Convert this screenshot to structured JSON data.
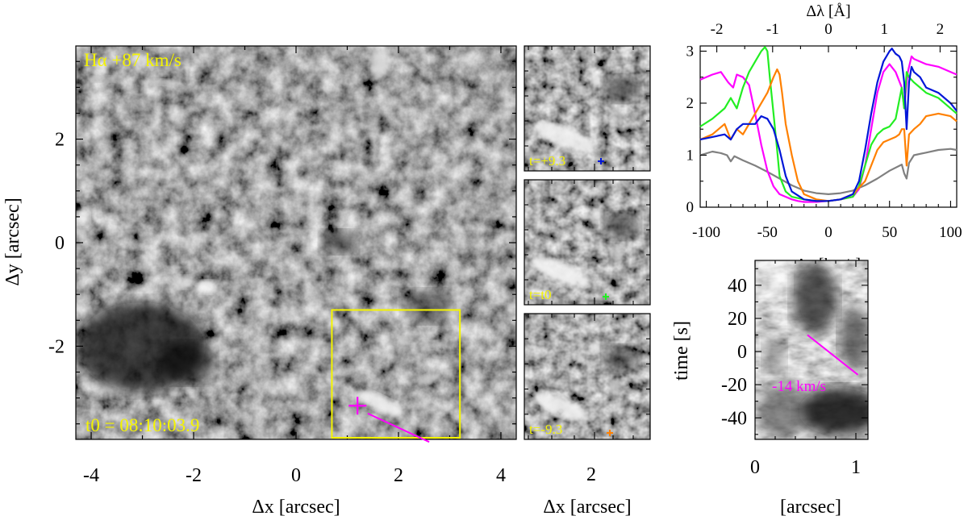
{
  "colors": {
    "yellow": "#f4f400",
    "magenta": "#ff00ff",
    "green": "#22ee22",
    "blue": "#0016d8",
    "orange": "#ff8000",
    "gray": "#808080"
  },
  "chart_data": [
    {
      "id": "main-image",
      "type": "heatmap",
      "label": "Hα +87 km/s",
      "time_label": "t0 = 08:10:03.9",
      "xlabel": "Δx [arcsec]",
      "ylabel": "Δy [arcsec]",
      "xlim": [
        -4.3,
        4.3
      ],
      "ylim": [
        -3.8,
        3.8
      ],
      "xticks": [
        "-4",
        "-2",
        "0",
        "2",
        "4"
      ],
      "yticks": [
        "-2",
        "0",
        "2"
      ],
      "roi_box": {
        "x": [
          0.7,
          3.2
        ],
        "y": [
          -3.8,
          -1.3
        ]
      },
      "marker": {
        "x": 1.2,
        "y": -3.15
      },
      "slit": {
        "x": [
          1.4,
          2.6
        ],
        "y": [
          -3.3,
          -3.85
        ]
      }
    },
    {
      "id": "cutouts",
      "type": "heatmap",
      "labels": [
        "t=+9.3",
        "t=t0",
        "t=-9.3"
      ],
      "marker_colors": [
        "#0016d8",
        "#22ee22",
        "#ff8000"
      ],
      "xlabel": "Δx [arcsec]",
      "xticks": [
        "2"
      ]
    },
    {
      "id": "profiles",
      "type": "line",
      "xlabel": "Δv [km/s]",
      "x2label": "Δλ [Å]",
      "xlim": [
        -105,
        105
      ],
      "ylim": [
        0,
        3.1
      ],
      "xticks": [
        "-100",
        "-50",
        "0",
        "50",
        "100"
      ],
      "x2ticks": [
        "-2",
        "-1",
        "0",
        "1",
        "2"
      ],
      "yticks": [
        "0",
        "1",
        "2",
        "3"
      ],
      "series": [
        {
          "color": "#808080",
          "x": [
            -105,
            -95,
            -88,
            -83,
            -80,
            -77,
            -70,
            -60,
            -50,
            -40,
            -30,
            -20,
            -10,
            0,
            10,
            20,
            30,
            40,
            50,
            60,
            62,
            64,
            66,
            70,
            80,
            90,
            100,
            105
          ],
          "y": [
            1.0,
            1.07,
            1.04,
            1.0,
            0.88,
            0.98,
            0.9,
            0.8,
            0.68,
            0.55,
            0.42,
            0.32,
            0.27,
            0.25,
            0.27,
            0.32,
            0.42,
            0.55,
            0.7,
            0.82,
            0.65,
            0.55,
            0.85,
            1.0,
            1.05,
            1.1,
            1.12,
            1.1
          ]
        },
        {
          "color": "#ff00ff",
          "x": [
            -105,
            -95,
            -88,
            -82,
            -78,
            -75,
            -70,
            -65,
            -60,
            -55,
            -50,
            -45,
            -40,
            -35,
            -30,
            -25,
            -20,
            -10,
            0,
            10,
            20,
            25,
            30,
            35,
            40,
            45,
            50,
            55,
            60,
            62,
            65,
            68,
            70,
            75,
            80,
            90,
            100,
            105
          ],
          "y": [
            2.45,
            2.55,
            2.6,
            2.4,
            2.3,
            2.55,
            2.5,
            2.35,
            1.8,
            1.2,
            0.7,
            0.4,
            0.25,
            0.2,
            0.15,
            0.12,
            0.1,
            0.1,
            0.12,
            0.15,
            0.2,
            0.35,
            0.8,
            1.5,
            2.2,
            2.6,
            2.75,
            2.6,
            2.3,
            1.9,
            2.6,
            2.9,
            2.85,
            2.8,
            2.75,
            2.7,
            2.6,
            2.55
          ]
        },
        {
          "color": "#22ee22",
          "x": [
            -105,
            -95,
            -85,
            -80,
            -75,
            -70,
            -65,
            -60,
            -55,
            -52,
            -50,
            -48,
            -45,
            -42,
            -40,
            -35,
            -30,
            -20,
            -10,
            0,
            10,
            20,
            25,
            30,
            35,
            40,
            45,
            50,
            55,
            60,
            62,
            64,
            66,
            70,
            75,
            80,
            90,
            100,
            105
          ],
          "y": [
            1.55,
            1.7,
            1.9,
            2.1,
            1.9,
            2.3,
            2.6,
            2.8,
            3.0,
            3.1,
            3.0,
            2.5,
            1.8,
            1.1,
            0.6,
            0.3,
            0.2,
            0.15,
            0.12,
            0.12,
            0.15,
            0.2,
            0.4,
            0.8,
            1.2,
            1.4,
            1.5,
            1.55,
            1.7,
            2.3,
            1.9,
            2.6,
            2.5,
            2.4,
            2.3,
            2.2,
            2.1,
            1.9,
            1.8
          ]
        },
        {
          "color": "#ff8000",
          "x": [
            -105,
            -95,
            -85,
            -80,
            -75,
            -70,
            -60,
            -50,
            -45,
            -42,
            -40,
            -38,
            -35,
            -30,
            -25,
            -20,
            -10,
            0,
            10,
            20,
            30,
            35,
            40,
            45,
            50,
            55,
            58,
            60,
            62,
            64,
            66,
            70,
            75,
            80,
            90,
            100,
            105
          ],
          "y": [
            1.3,
            1.4,
            1.6,
            1.3,
            1.5,
            1.4,
            1.8,
            2.2,
            2.5,
            2.65,
            2.55,
            2.2,
            1.6,
            1.0,
            0.5,
            0.25,
            0.15,
            0.12,
            0.15,
            0.25,
            0.5,
            0.8,
            1.1,
            1.25,
            1.3,
            1.35,
            1.4,
            1.5,
            1.5,
            0.8,
            1.4,
            1.5,
            1.6,
            1.75,
            1.8,
            1.75,
            1.65
          ]
        },
        {
          "color": "#0016d8",
          "x": [
            -105,
            -95,
            -85,
            -80,
            -75,
            -70,
            -60,
            -55,
            -50,
            -45,
            -40,
            -35,
            -30,
            -20,
            -10,
            0,
            10,
            20,
            25,
            30,
            35,
            40,
            45,
            50,
            52,
            55,
            58,
            60,
            62,
            64,
            66,
            68,
            70,
            75,
            80,
            90,
            100,
            105
          ],
          "y": [
            1.3,
            1.35,
            1.4,
            1.3,
            1.5,
            1.6,
            1.6,
            1.75,
            1.7,
            1.5,
            1.1,
            0.6,
            0.3,
            0.15,
            0.12,
            0.12,
            0.15,
            0.25,
            0.5,
            1.1,
            1.8,
            2.4,
            2.8,
            3.0,
            3.05,
            2.95,
            2.9,
            2.8,
            2.4,
            1.5,
            2.4,
            2.7,
            2.6,
            2.5,
            2.3,
            2.2,
            2.0,
            1.85
          ]
        }
      ]
    },
    {
      "id": "time-slice",
      "type": "heatmap",
      "xlabel": "[arcsec]",
      "ylabel": "time [s]",
      "xlim": [
        0,
        1.12
      ],
      "ylim": [
        -53,
        55
      ],
      "xticks": [
        "0",
        "1"
      ],
      "yticks": [
        "-40",
        "-20",
        "0",
        "20",
        "40"
      ],
      "velocity_label": "-14 km/s",
      "fit_line": {
        "x": [
          0.52,
          1.02
        ],
        "y": [
          10,
          -14
        ]
      }
    }
  ]
}
